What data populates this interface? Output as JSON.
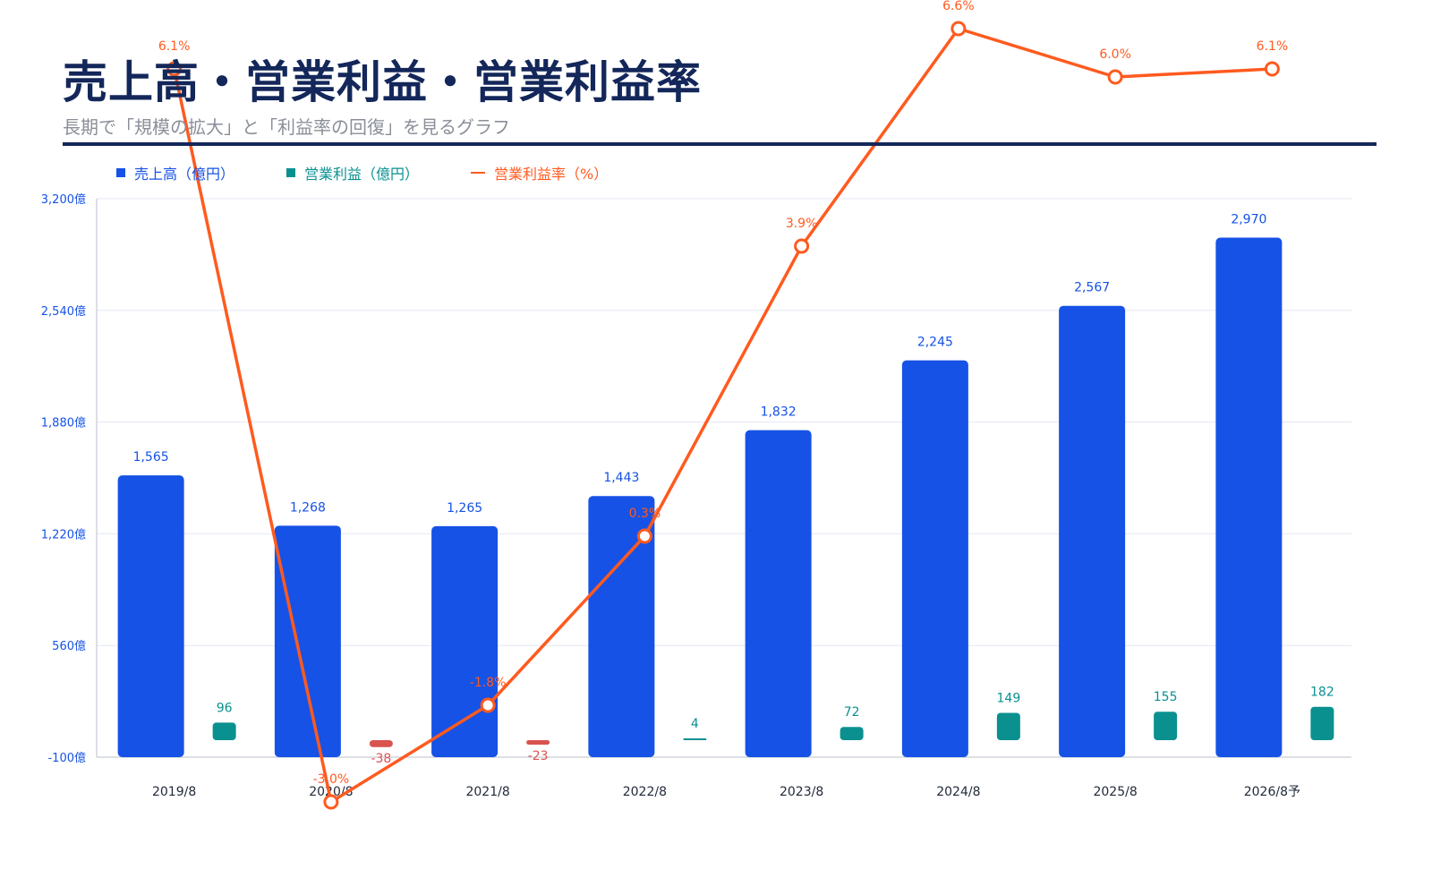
{
  "header": {
    "title": "売上高・営業利益・営業利益率",
    "subtitle": "長期で「規模の拡大」と「利益率の回復」を見るグラフ"
  },
  "legend": [
    {
      "label": "売上高（億円）",
      "color": "#1652e6",
      "kind": "square"
    },
    {
      "label": "営業利益（億円）",
      "color": "#0b9090",
      "kind": "square"
    },
    {
      "label": "営業利益率（%）",
      "color": "#ff5a1f",
      "kind": "line"
    }
  ],
  "chart_data": {
    "type": "bar",
    "categories": [
      "2019/8",
      "2020/8",
      "2021/8",
      "2022/8",
      "2023/8",
      "2024/8",
      "2025/8",
      "2026/8予"
    ],
    "y_ticks": [
      "3,200億",
      "2,540億",
      "1,880億",
      "1,220億",
      "560億",
      "-100億"
    ],
    "ylim": [
      -100,
      3200
    ],
    "grid": true,
    "legend_position": "top-left",
    "series": [
      {
        "name": "売上高（億円）",
        "type": "bar",
        "color": "#1652e6",
        "values": [
          1565,
          1268,
          1265,
          1443,
          1832,
          2245,
          2567,
          2970
        ],
        "labels": [
          "1,565",
          "1,268",
          "1,265",
          "1,443",
          "1,832",
          "2,245",
          "2,567",
          "2,970"
        ]
      },
      {
        "name": "営業利益（億円）",
        "type": "bar",
        "color": "#0b9090",
        "negative_color": "#d9534f",
        "values": [
          96,
          -38,
          -23,
          4,
          72,
          149,
          155,
          182
        ],
        "labels": [
          "96",
          "-38",
          "-23",
          "4",
          "72",
          "149",
          "155",
          "182"
        ]
      },
      {
        "name": "営業利益率（%）",
        "type": "line",
        "color": "#ff5a1f",
        "values": [
          6.1,
          -3.0,
          -1.8,
          0.3,
          3.9,
          6.6,
          6.0,
          6.1
        ],
        "labels": [
          "6.1%",
          "-3.0%",
          "-1.8%",
          "0.3%",
          "3.9%",
          "6.6%",
          "6.0%",
          "6.1%"
        ]
      }
    ]
  }
}
